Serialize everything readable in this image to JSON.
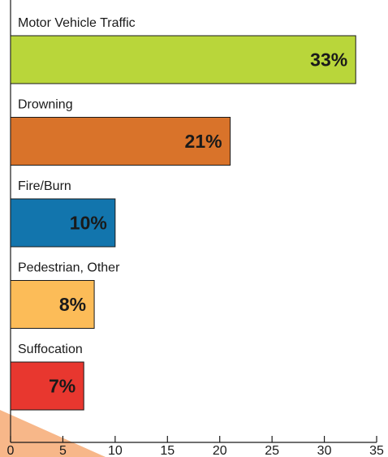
{
  "chart_data": {
    "type": "bar",
    "orientation": "horizontal",
    "categories": [
      "Motor Vehicle  Traffic",
      "Drowning",
      "Fire/Burn",
      "Pedestrian, Other",
      "Suffocation"
    ],
    "values": [
      33,
      21,
      10,
      8,
      7
    ],
    "value_labels": [
      "33%",
      "21%",
      "10%",
      "8%",
      "7%"
    ],
    "colors": [
      "#b9d63a",
      "#d9732a",
      "#1275ad",
      "#fcbc58",
      "#e8372f"
    ],
    "title": "",
    "xlabel": "",
    "ylabel": "",
    "xlim": [
      0,
      35
    ],
    "xticks": [
      0,
      5,
      10,
      15,
      20,
      25,
      30,
      35
    ],
    "grid": false,
    "legend": "none",
    "decoration_color": "#f7b789"
  }
}
